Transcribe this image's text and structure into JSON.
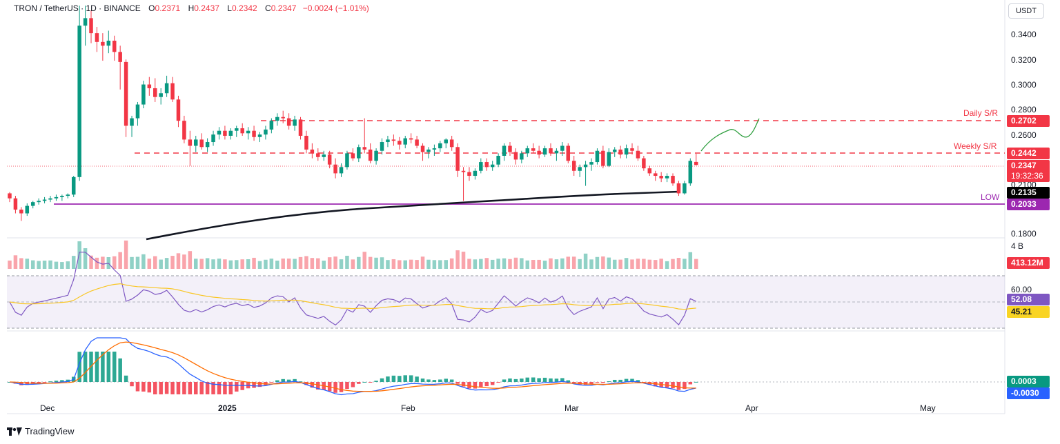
{
  "header": {
    "symbol": "TRON / TetherUS · 1D · BINANCE",
    "o_label": "O",
    "o_value": "0.2371",
    "h_label": "H",
    "h_value": "0.2437",
    "l_label": "L",
    "l_value": "0.2342",
    "c_label": "C",
    "c_value": "0.2347",
    "change": "−0.0024 (−1.01%)"
  },
  "unit": "USDT",
  "price_axis": {
    "ticks": [
      "0.3400",
      "0.3200",
      "0.3000",
      "0.2800",
      "0.2600",
      "0.2100",
      "0.1800"
    ]
  },
  "levels": {
    "daily_label": "Daily S/R",
    "daily_value": "0.2702",
    "weekly_label": "Weekly S/R",
    "weekly_value": "0.2442",
    "last_price": "0.2347",
    "countdown": "19:32:36",
    "ma_value": "0.2135",
    "low_label": "LOW",
    "low_value": "0.2033"
  },
  "volume": {
    "scale_label": "4 B",
    "last_value": "413.12M"
  },
  "rsi": {
    "level_label": "60.00",
    "rsi_value": "52.08",
    "ma_value": "45.21"
  },
  "macd": {
    "hist_value": "0.0003",
    "macd_value": "-0.0030"
  },
  "x_axis": [
    "Dec",
    "2025",
    "Feb",
    "Mar",
    "Apr",
    "May"
  ],
  "brand": "TradingView",
  "colors": {
    "up": "#089981",
    "down": "#f23645",
    "rsi": "#7e57c2",
    "rsi_ma": "#f9d423",
    "macd": "#2962ff",
    "signal": "#ff6d00",
    "low": "#9c27b0"
  },
  "chart_data": {
    "type": "candlestick",
    "x_labels": [
      "Dec",
      "2025",
      "Feb",
      "Mar",
      "Apr",
      "May"
    ],
    "ylim": [
      0.18,
      0.35
    ],
    "candles": [
      [
        0.212,
        0.213,
        0.205,
        0.208
      ],
      [
        0.208,
        0.21,
        0.196,
        0.199
      ],
      [
        0.199,
        0.201,
        0.19,
        0.196
      ],
      [
        0.196,
        0.204,
        0.194,
        0.202
      ],
      [
        0.202,
        0.206,
        0.2,
        0.205
      ],
      [
        0.205,
        0.208,
        0.203,
        0.206
      ],
      [
        0.206,
        0.209,
        0.204,
        0.207
      ],
      [
        0.207,
        0.21,
        0.205,
        0.208
      ],
      [
        0.208,
        0.211,
        0.206,
        0.209
      ],
      [
        0.209,
        0.211,
        0.206,
        0.21
      ],
      [
        0.21,
        0.212,
        0.208,
        0.211
      ],
      [
        0.211,
        0.226,
        0.209,
        0.225
      ],
      [
        0.225,
        0.362,
        0.222,
        0.346
      ],
      [
        0.346,
        0.362,
        0.33,
        0.352
      ],
      [
        0.352,
        0.358,
        0.332,
        0.34
      ],
      [
        0.34,
        0.345,
        0.325,
        0.333
      ],
      [
        0.333,
        0.34,
        0.318,
        0.33
      ],
      [
        0.33,
        0.342,
        0.324,
        0.334
      ],
      [
        0.334,
        0.338,
        0.318,
        0.325
      ],
      [
        0.325,
        0.33,
        0.295,
        0.317
      ],
      [
        0.317,
        0.319,
        0.257,
        0.266
      ],
      [
        0.266,
        0.274,
        0.257,
        0.272
      ],
      [
        0.272,
        0.285,
        0.266,
        0.283
      ],
      [
        0.283,
        0.302,
        0.28,
        0.299
      ],
      [
        0.299,
        0.305,
        0.29,
        0.296
      ],
      [
        0.296,
        0.304,
        0.285,
        0.289
      ],
      [
        0.289,
        0.296,
        0.283,
        0.292
      ],
      [
        0.292,
        0.306,
        0.289,
        0.3
      ],
      [
        0.3,
        0.305,
        0.285,
        0.287
      ],
      [
        0.287,
        0.29,
        0.265,
        0.27
      ],
      [
        0.27,
        0.274,
        0.252,
        0.255
      ],
      [
        0.255,
        0.262,
        0.234,
        0.25
      ],
      [
        0.25,
        0.258,
        0.245,
        0.255
      ],
      [
        0.255,
        0.26,
        0.247,
        0.249
      ],
      [
        0.249,
        0.256,
        0.245,
        0.253
      ],
      [
        0.253,
        0.262,
        0.25,
        0.259
      ],
      [
        0.259,
        0.265,
        0.255,
        0.262
      ],
      [
        0.262,
        0.266,
        0.255,
        0.258
      ],
      [
        0.258,
        0.264,
        0.255,
        0.262
      ],
      [
        0.262,
        0.266,
        0.257,
        0.264
      ],
      [
        0.264,
        0.268,
        0.258,
        0.26
      ],
      [
        0.26,
        0.265,
        0.255,
        0.262
      ],
      [
        0.262,
        0.266,
        0.254,
        0.257
      ],
      [
        0.257,
        0.261,
        0.253,
        0.259
      ],
      [
        0.259,
        0.266,
        0.255,
        0.263
      ],
      [
        0.263,
        0.272,
        0.26,
        0.27
      ],
      [
        0.27,
        0.276,
        0.266,
        0.273
      ],
      [
        0.273,
        0.278,
        0.268,
        0.272
      ],
      [
        0.272,
        0.276,
        0.263,
        0.266
      ],
      [
        0.266,
        0.274,
        0.262,
        0.271
      ],
      [
        0.271,
        0.273,
        0.255,
        0.258
      ],
      [
        0.258,
        0.262,
        0.244,
        0.247
      ],
      [
        0.247,
        0.252,
        0.24,
        0.244
      ],
      [
        0.244,
        0.248,
        0.238,
        0.241
      ],
      [
        0.241,
        0.246,
        0.238,
        0.243
      ],
      [
        0.243,
        0.246,
        0.232,
        0.235
      ],
      [
        0.235,
        0.24,
        0.224,
        0.228
      ],
      [
        0.228,
        0.236,
        0.225,
        0.233
      ],
      [
        0.233,
        0.246,
        0.231,
        0.244
      ],
      [
        0.244,
        0.248,
        0.238,
        0.24
      ],
      [
        0.24,
        0.251,
        0.237,
        0.249
      ],
      [
        0.249,
        0.272,
        0.244,
        0.247
      ],
      [
        0.247,
        0.252,
        0.236,
        0.238
      ],
      [
        0.238,
        0.248,
        0.235,
        0.246
      ],
      [
        0.246,
        0.256,
        0.243,
        0.253
      ],
      [
        0.253,
        0.258,
        0.249,
        0.255
      ],
      [
        0.255,
        0.259,
        0.25,
        0.254
      ],
      [
        0.254,
        0.257,
        0.247,
        0.251
      ],
      [
        0.251,
        0.258,
        0.248,
        0.256
      ],
      [
        0.256,
        0.26,
        0.252,
        0.255
      ],
      [
        0.255,
        0.258,
        0.248,
        0.25
      ],
      [
        0.25,
        0.252,
        0.238,
        0.245
      ],
      [
        0.245,
        0.249,
        0.24,
        0.247
      ],
      [
        0.247,
        0.251,
        0.242,
        0.248
      ],
      [
        0.248,
        0.254,
        0.245,
        0.252
      ],
      [
        0.252,
        0.256,
        0.248,
        0.255
      ],
      [
        0.255,
        0.258,
        0.246,
        0.249
      ],
      [
        0.249,
        0.252,
        0.225,
        0.23
      ],
      [
        0.23,
        0.233,
        0.206,
        0.229
      ],
      [
        0.229,
        0.233,
        0.222,
        0.226
      ],
      [
        0.226,
        0.232,
        0.223,
        0.23
      ],
      [
        0.23,
        0.24,
        0.228,
        0.237
      ],
      [
        0.237,
        0.24,
        0.23,
        0.233
      ],
      [
        0.233,
        0.238,
        0.23,
        0.235
      ],
      [
        0.235,
        0.244,
        0.233,
        0.242
      ],
      [
        0.242,
        0.252,
        0.238,
        0.25
      ],
      [
        0.25,
        0.253,
        0.242,
        0.245
      ],
      [
        0.245,
        0.248,
        0.235,
        0.239
      ],
      [
        0.239,
        0.246,
        0.236,
        0.244
      ],
      [
        0.244,
        0.25,
        0.241,
        0.248
      ],
      [
        0.248,
        0.252,
        0.244,
        0.246
      ],
      [
        0.246,
        0.25,
        0.24,
        0.243
      ],
      [
        0.243,
        0.25,
        0.241,
        0.248
      ],
      [
        0.248,
        0.252,
        0.242,
        0.244
      ],
      [
        0.244,
        0.248,
        0.238,
        0.246
      ],
      [
        0.246,
        0.253,
        0.242,
        0.25
      ],
      [
        0.25,
        0.252,
        0.236,
        0.238
      ],
      [
        0.238,
        0.242,
        0.226,
        0.23
      ],
      [
        0.23,
        0.235,
        0.225,
        0.233
      ],
      [
        0.233,
        0.238,
        0.218,
        0.235
      ],
      [
        0.235,
        0.24,
        0.23,
        0.237
      ],
      [
        0.237,
        0.248,
        0.235,
        0.246
      ],
      [
        0.246,
        0.25,
        0.232,
        0.234
      ],
      [
        0.234,
        0.248,
        0.233,
        0.245
      ],
      [
        0.245,
        0.249,
        0.241,
        0.247
      ],
      [
        0.247,
        0.25,
        0.24,
        0.243
      ],
      [
        0.243,
        0.251,
        0.24,
        0.248
      ],
      [
        0.248,
        0.252,
        0.243,
        0.246
      ],
      [
        0.246,
        0.25,
        0.238,
        0.24
      ],
      [
        0.24,
        0.242,
        0.23,
        0.232
      ],
      [
        0.232,
        0.234,
        0.226,
        0.228
      ],
      [
        0.228,
        0.23,
        0.222,
        0.226
      ],
      [
        0.226,
        0.229,
        0.221,
        0.224
      ],
      [
        0.224,
        0.228,
        0.221,
        0.226
      ],
      [
        0.226,
        0.228,
        0.218,
        0.22
      ],
      [
        0.22,
        0.222,
        0.21,
        0.212
      ],
      [
        0.212,
        0.222,
        0.211,
        0.22
      ],
      [
        0.22,
        0.24,
        0.218,
        0.238
      ],
      [
        0.2371,
        0.2437,
        0.2342,
        0.2347
      ]
    ],
    "ma_line": {
      "start": 0.168,
      "end": 0.2135
    },
    "levels": {
      "daily_sr": 0.2702,
      "weekly_sr": 0.2442,
      "low": 0.2033
    }
  }
}
